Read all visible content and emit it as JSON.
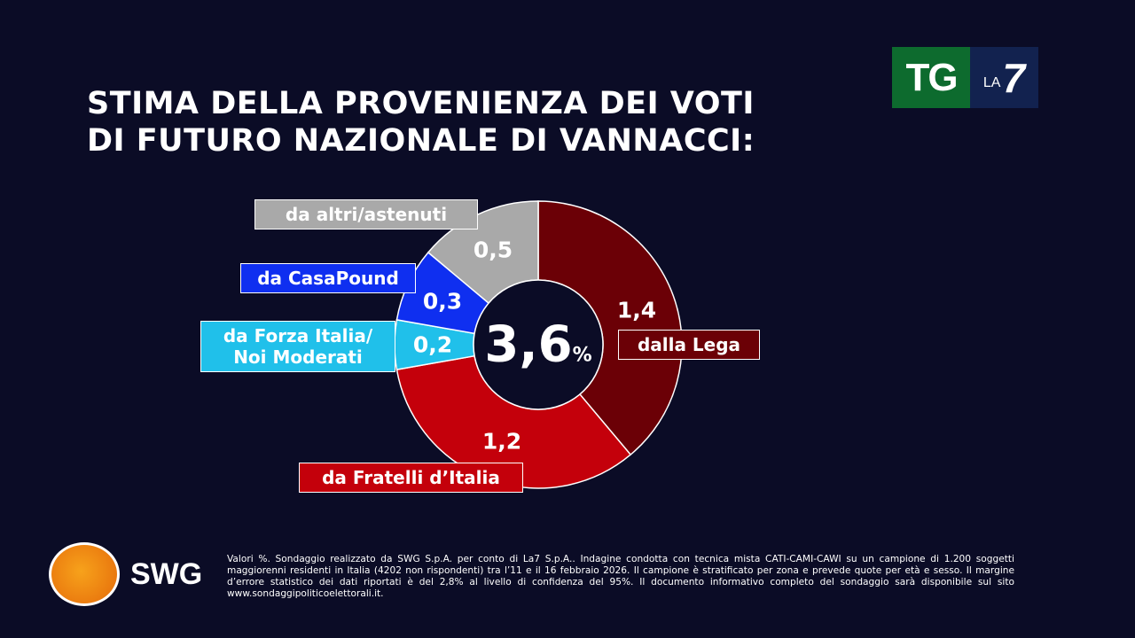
{
  "header": {
    "title_line1": "STIMA DELLA PROVENIENZA DEI VOTI",
    "title_line2": "DI FUTURO NAZIONALE DI VANNACCI:"
  },
  "logo": {
    "tg": "TG",
    "la": "LA",
    "seven": "7"
  },
  "chart_data": {
    "type": "pie",
    "subtype": "donut",
    "total_label": "3,6",
    "total_unit": "%",
    "total": 3.6,
    "slices": [
      {
        "label": "dalla Lega",
        "value": 1.4,
        "value_label": "1,4",
        "color": "#6b0006"
      },
      {
        "label": "da Fratelli d’Italia",
        "value": 1.2,
        "value_label": "1,2",
        "color": "#c4000b"
      },
      {
        "label": "da Forza Italia/ Noi Moderati",
        "value": 0.2,
        "value_label": "0,2",
        "color": "#20c0ea"
      },
      {
        "label": "da CasaPound",
        "value": 0.3,
        "value_label": "0,3",
        "color": "#0f2ff0"
      },
      {
        "label": "da altri/astenuti",
        "value": 0.5,
        "value_label": "0,5",
        "color": "#a9a9a9"
      }
    ]
  },
  "footer": {
    "brand": "SWG",
    "note": "Valori %. Sondaggio realizzato da SWG S.p.A. per conto di La7 S.p.A.. Indagine condotta con tecnica mista CATI-CAMI-CAWI su un campione di 1.200 soggetti maggiorenni residenti in Italia (4202 non rispondenti) tra l’11 e il 16 febbraio 2026. Il campione è stratificato per zona e prevede quote per età e sesso. Il margine d’errore statistico dei dati riportati è del 2,8% al livello di confidenza del 95%. Il documento informativo completo del sondaggio sarà disponibile sul sito www.sondaggipoliticoelettorali.it."
  }
}
